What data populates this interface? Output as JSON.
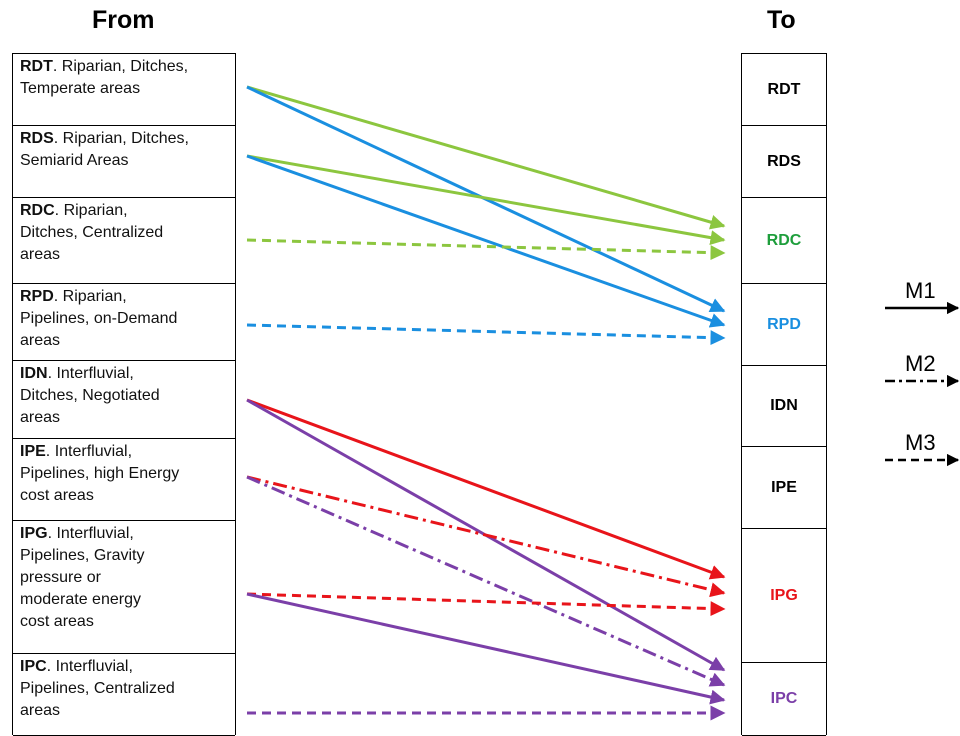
{
  "headings": {
    "from": "From",
    "to": "To"
  },
  "from_rows": [
    {
      "code": "RDT",
      "lines": [
        "RDT. Riparian, Ditches,",
        "Temperate areas"
      ]
    },
    {
      "code": "RDS",
      "lines": [
        "RDS. Riparian, Ditches,",
        "Semiarid Areas"
      ]
    },
    {
      "code": "RDC",
      "lines": [
        "RDC. Riparian,",
        "Ditches, Centralized",
        "areas"
      ]
    },
    {
      "code": "RPD",
      "lines": [
        "RPD. Riparian,",
        "Pipelines, on-Demand",
        "areas"
      ]
    },
    {
      "code": "IDN",
      "lines": [
        "IDN.  Interfluvial,",
        "Ditches, Negotiated",
        "areas"
      ]
    },
    {
      "code": "IPE",
      "lines": [
        "IPE. Interfluvial,",
        "Pipelines, high Energy",
        "cost areas"
      ]
    },
    {
      "code": "IPG",
      "lines": [
        "IPG. Interfluvial,",
        "Pipelines, Gravity",
        "pressure or",
        "moderate energy",
        "cost areas"
      ]
    },
    {
      "code": "IPC",
      "lines": [
        "IPC. Interfluvial,",
        "Pipelines, Centralized",
        "areas"
      ]
    }
  ],
  "to_rows": [
    {
      "label": "RDT",
      "color": "#000000"
    },
    {
      "label": "RDS",
      "color": "#000000"
    },
    {
      "label": "RDC",
      "color": "#1e9e3c"
    },
    {
      "label": "RPD",
      "color": "#1a8fe0"
    },
    {
      "label": "IDN",
      "color": "#000000"
    },
    {
      "label": "IPE",
      "color": "#000000"
    },
    {
      "label": "IPG",
      "color": "#e8141a"
    },
    {
      "label": "IPC",
      "color": "#7b3fa8"
    }
  ],
  "arrow_colors": {
    "green": "#8cc63f",
    "blue": "#1a8fe0",
    "red": "#e8141a",
    "purple": "#7b3fa8"
  },
  "arrows": [
    {
      "from": "RDT",
      "to": "RDC",
      "style": "M1",
      "color": "green"
    },
    {
      "from": "RDT",
      "to": "RPD",
      "style": "M1",
      "color": "blue"
    },
    {
      "from": "RDS",
      "to": "RDC",
      "style": "M1",
      "color": "green"
    },
    {
      "from": "RDS",
      "to": "RPD",
      "style": "M1",
      "color": "blue"
    },
    {
      "from": "RDC",
      "to": "RDC",
      "style": "M3",
      "color": "green"
    },
    {
      "from": "RPD",
      "to": "RPD",
      "style": "M3",
      "color": "blue"
    },
    {
      "from": "IDN",
      "to": "IPG",
      "style": "M1",
      "color": "red"
    },
    {
      "from": "IDN",
      "to": "IPC",
      "style": "M1",
      "color": "purple"
    },
    {
      "from": "IPE",
      "to": "IPG",
      "style": "M2",
      "color": "red"
    },
    {
      "from": "IPE",
      "to": "IPC",
      "style": "M2",
      "color": "purple"
    },
    {
      "from": "IPG",
      "to": "IPG",
      "style": "M3",
      "color": "red"
    },
    {
      "from": "IPG",
      "to": "IPC",
      "style": "M1",
      "color": "purple"
    },
    {
      "from": "IPC",
      "to": "IPC",
      "style": "M3",
      "color": "purple"
    }
  ],
  "legend": [
    {
      "label": "M1",
      "style": "solid"
    },
    {
      "label": "M2",
      "style": "dash-dot"
    },
    {
      "label": "M3",
      "style": "dashed"
    }
  ]
}
